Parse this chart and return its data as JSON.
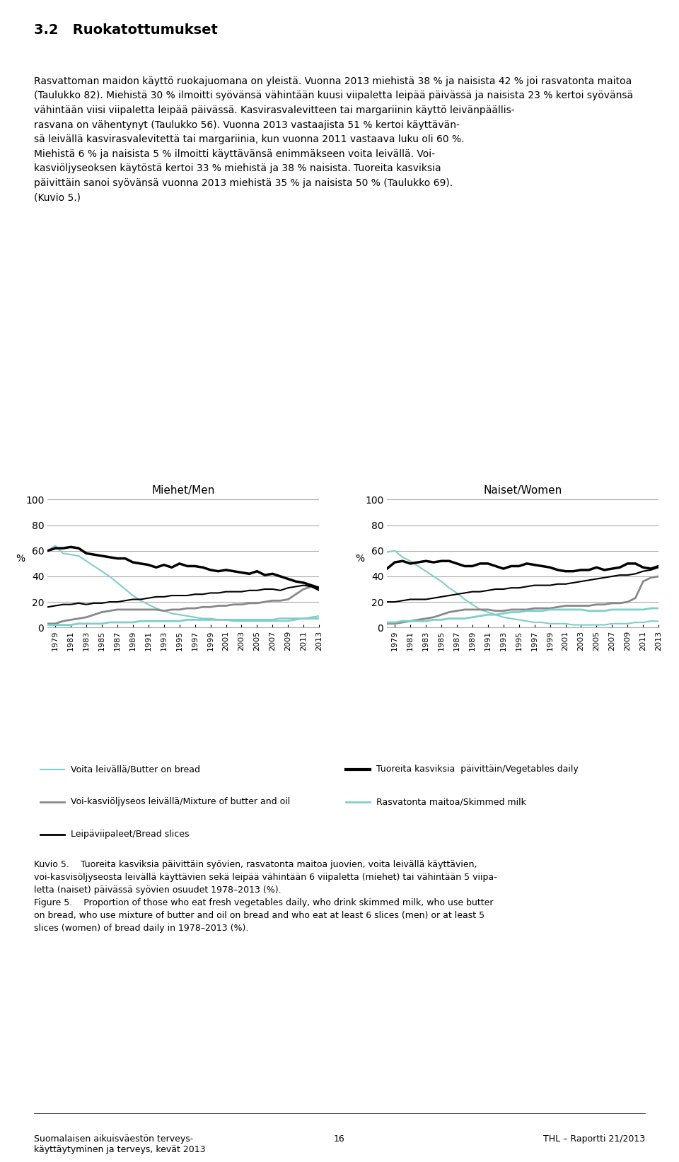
{
  "years": [
    1978,
    1979,
    1980,
    1981,
    1982,
    1983,
    1984,
    1985,
    1986,
    1987,
    1988,
    1989,
    1990,
    1991,
    1992,
    1993,
    1994,
    1995,
    1996,
    1997,
    1998,
    1999,
    2000,
    2001,
    2002,
    2003,
    2004,
    2005,
    2006,
    2007,
    2008,
    2009,
    2010,
    2011,
    2012,
    2013
  ],
  "men": {
    "voita": [
      60,
      64,
      58,
      57,
      56,
      52,
      48,
      44,
      40,
      35,
      30,
      25,
      21,
      18,
      15,
      13,
      11,
      10,
      9,
      8,
      7,
      7,
      6,
      6,
      5,
      5,
      5,
      5,
      5,
      5,
      5,
      5,
      6,
      7,
      8,
      9
    ],
    "voi_kasvi": [
      3,
      3,
      5,
      6,
      7,
      8,
      10,
      12,
      13,
      14,
      14,
      14,
      14,
      14,
      14,
      13,
      14,
      14,
      15,
      15,
      16,
      16,
      17,
      17,
      18,
      18,
      19,
      19,
      20,
      21,
      21,
      22,
      26,
      30,
      32,
      30
    ],
    "leipa": [
      16,
      17,
      18,
      18,
      19,
      18,
      19,
      19,
      20,
      20,
      21,
      22,
      22,
      23,
      24,
      24,
      25,
      25,
      25,
      26,
      26,
      27,
      27,
      28,
      28,
      28,
      29,
      29,
      30,
      30,
      29,
      31,
      32,
      33,
      32,
      29
    ],
    "tuoreita": [
      60,
      62,
      62,
      63,
      62,
      58,
      57,
      56,
      55,
      54,
      54,
      51,
      50,
      49,
      47,
      49,
      47,
      50,
      48,
      48,
      47,
      45,
      44,
      45,
      44,
      43,
      42,
      44,
      41,
      42,
      40,
      38,
      36,
      35,
      33,
      31
    ],
    "rasvatonta": [
      2,
      2,
      2,
      2,
      3,
      3,
      3,
      3,
      4,
      4,
      4,
      4,
      5,
      5,
      5,
      5,
      5,
      5,
      6,
      6,
      6,
      6,
      6,
      6,
      6,
      6,
      6,
      6,
      6,
      6,
      7,
      7,
      7,
      7,
      7,
      7
    ]
  },
  "women": {
    "voita": [
      59,
      60,
      55,
      52,
      48,
      44,
      40,
      36,
      31,
      27,
      22,
      18,
      14,
      12,
      10,
      8,
      7,
      6,
      5,
      4,
      4,
      3,
      3,
      3,
      2,
      2,
      2,
      2,
      2,
      3,
      3,
      3,
      4,
      4,
      5,
      5
    ],
    "voi_kasvi": [
      3,
      3,
      4,
      5,
      6,
      7,
      8,
      10,
      12,
      13,
      14,
      14,
      14,
      14,
      13,
      13,
      14,
      14,
      14,
      15,
      15,
      15,
      16,
      17,
      17,
      17,
      17,
      18,
      18,
      19,
      19,
      20,
      23,
      36,
      39,
      40
    ],
    "leipa": [
      20,
      20,
      21,
      22,
      22,
      22,
      23,
      24,
      25,
      26,
      27,
      28,
      28,
      29,
      30,
      30,
      31,
      31,
      32,
      33,
      33,
      33,
      34,
      34,
      35,
      36,
      37,
      38,
      39,
      40,
      41,
      41,
      42,
      44,
      45,
      47
    ],
    "tuoreita": [
      46,
      51,
      52,
      50,
      51,
      52,
      51,
      52,
      52,
      50,
      48,
      48,
      50,
      50,
      48,
      46,
      48,
      48,
      50,
      49,
      48,
      47,
      45,
      44,
      44,
      45,
      45,
      47,
      45,
      46,
      47,
      50,
      50,
      47,
      46,
      48
    ],
    "rasvatonta": [
      4,
      4,
      5,
      5,
      5,
      5,
      6,
      6,
      7,
      7,
      7,
      8,
      9,
      10,
      10,
      11,
      12,
      12,
      13,
      13,
      13,
      14,
      14,
      14,
      14,
      14,
      13,
      13,
      13,
      14,
      14,
      14,
      14,
      14,
      15,
      15
    ]
  },
  "color_voita": "#7ececa",
  "color_voi_kasvi": "#888888",
  "color_leipa": "#000000",
  "color_tuoreita": "#000000",
  "color_rasvatonta": "#7ececa",
  "title_men": "Miehet/Men",
  "title_women": "Naiset/Women",
  "ylabel": "%",
  "ylim": [
    0,
    100
  ],
  "yticks": [
    0,
    20,
    40,
    60,
    80,
    100
  ],
  "legend_items": [
    {
      "label": "Voita leivällä/Butter on bread",
      "color": "#7ececa",
      "lw": 1.5
    },
    {
      "label": "Voi-kasviolöjyseos leivällä/Mixture of butter and oil",
      "color": "#888888",
      "lw": 2
    },
    {
      "label": "Leipäviipaleet/Bread slices",
      "color": "#000000",
      "lw": 2
    },
    {
      "label": "Tuoreita kasviksia  päivittäin/Vegetables daily",
      "color": "#000000",
      "lw": 3
    },
    {
      "label": "Rasvatonta maitoa/Skimmed milk",
      "color": "#7ececa",
      "lw": 2
    }
  ]
}
